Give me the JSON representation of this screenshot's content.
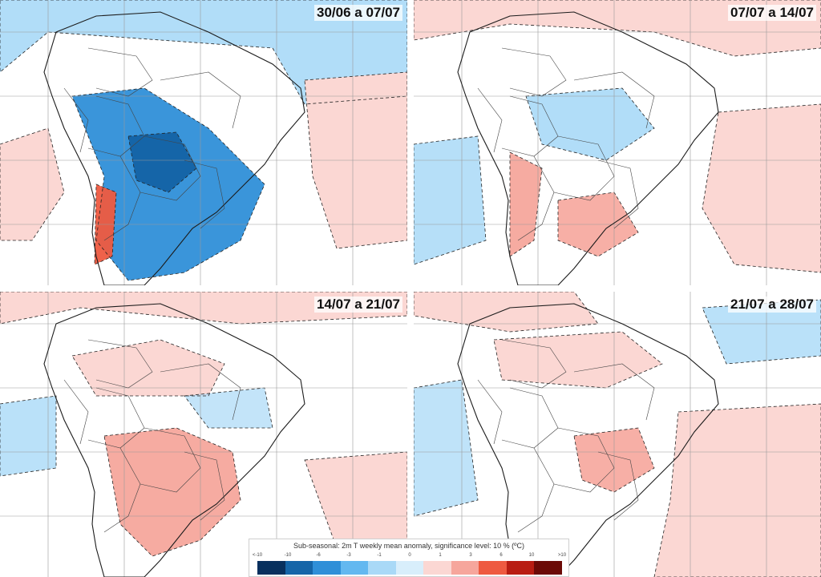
{
  "panels": [
    {
      "label": "30/06 a 07/07",
      "scheme": "cold"
    },
    {
      "label": "07/07 a 14/07",
      "scheme": "mixed"
    },
    {
      "label": "14/07 a 21/07",
      "scheme": "warm"
    },
    {
      "label": "21/07 a 28/07",
      "scheme": "mild"
    }
  ],
  "legend": {
    "title": "Sub-seasonal: 2m T weekly mean anomaly, significance level: 10 % (ºC)",
    "ticks": [
      "<-10",
      "-10",
      "-6",
      "-3",
      "-1",
      "0",
      "1",
      "3",
      "6",
      "10",
      ">10"
    ],
    "colors": [
      "#08305e",
      "#1565a8",
      "#2f8fd8",
      "#63b8f0",
      "#a9d9f7",
      "#d8eefb",
      "#fbd7d3",
      "#f6a69c",
      "#ee5a40",
      "#b81d12",
      "#6b0a06"
    ]
  },
  "colors": {
    "ocean": "#ffffff",
    "cold_region": "#2f8fd8",
    "cold_core": "#1565a8",
    "cool": "#a9d9f7",
    "warm": "#f6a69c",
    "warm_soft": "#fbd7d3",
    "hot": "#ee5a40"
  }
}
